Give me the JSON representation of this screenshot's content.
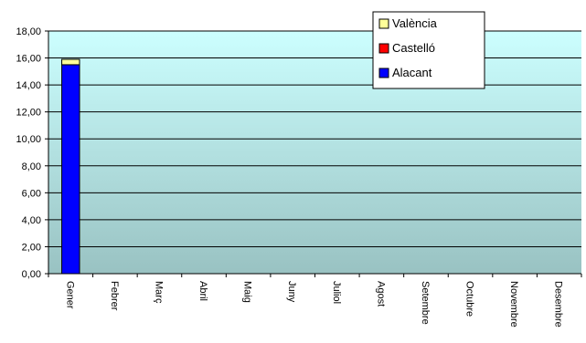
{
  "chart_data": {
    "type": "bar",
    "stacked": true,
    "title": "",
    "xlabel": "",
    "ylabel": "",
    "ylim": [
      0,
      18
    ],
    "ytick_step": 2,
    "ytick_labels": [
      "0,00",
      "2,00",
      "4,00",
      "6,00",
      "8,00",
      "10,00",
      "12,00",
      "14,00",
      "16,00",
      "18,00"
    ],
    "categories": [
      "Gener",
      "Febrer",
      "Març",
      "Abril",
      "Maig",
      "Juny",
      "Juliol",
      "Agost",
      "Setembre",
      "Octubre",
      "Novembre",
      "Desembre"
    ],
    "series": [
      {
        "name": "Alacant",
        "color": "#0000FF",
        "values": [
          15.5,
          0,
          0,
          0,
          0,
          0,
          0,
          0,
          0,
          0,
          0,
          0
        ]
      },
      {
        "name": "Castelló",
        "color": "#FF0000",
        "values": [
          0,
          0,
          0,
          0,
          0,
          0,
          0,
          0,
          0,
          0,
          0,
          0
        ]
      },
      {
        "name": "València",
        "color": "#FFFF99",
        "values": [
          0.4,
          0,
          0,
          0,
          0,
          0,
          0,
          0,
          0,
          0,
          0,
          0
        ]
      }
    ],
    "legend": {
      "placement": "top-right",
      "entries": [
        "València",
        "Castelló",
        "Alacant"
      ]
    },
    "grid": true,
    "plot_background": {
      "top_color": "#CCFFFF",
      "bottom_color": "#99C2C2"
    }
  }
}
